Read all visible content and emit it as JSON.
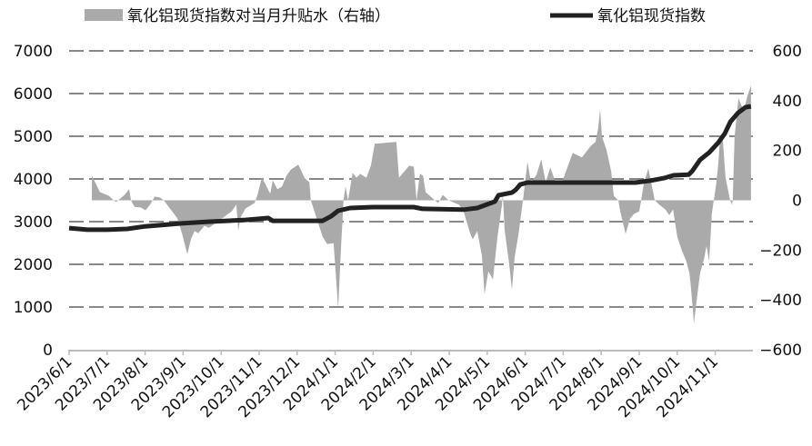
{
  "chart_data": {
    "type": "line",
    "title": "",
    "x_unit": "months since 2023/6/1",
    "x_tick_labels": [
      "2023/6/1",
      "2023/7/1",
      "2023/8/1",
      "2023/9/1",
      "2023/10/1",
      "2023/11/1",
      "2023/12/1",
      "2024/1/1",
      "2024/2/1",
      "2024/3/1",
      "2024/4/1",
      "2024/5/1",
      "2024/6/1",
      "2024/7/1",
      "2024/8/1",
      "2024/9/1",
      "2024/10/1",
      "2024/11/1"
    ],
    "left_axis": {
      "ylim": [
        0,
        7000
      ],
      "ticks": [
        "0",
        "1000",
        "2000",
        "3000",
        "4000",
        "5000",
        "6000",
        "7000"
      ]
    },
    "right_axis": {
      "ylim": [
        -600,
        600
      ],
      "ticks": [
        "-600",
        "-400",
        "-200",
        "0",
        "200",
        "400",
        "600"
      ]
    },
    "grid": true,
    "legend_position": "top",
    "series": [
      {
        "name": "氧化铝现货指数对当月升贴水（右轴）",
        "type": "area",
        "axis": "right",
        "color": "#aaaaaa",
        "points": [
          [
            0.6,
            99
          ],
          [
            0.81,
            33
          ],
          [
            1.05,
            18
          ],
          [
            1.17,
            0
          ],
          [
            1.24,
            -7
          ],
          [
            1.46,
            22
          ],
          [
            1.58,
            44
          ],
          [
            1.63,
            0
          ],
          [
            1.72,
            -26
          ],
          [
            1.89,
            -29
          ],
          [
            2.01,
            -40
          ],
          [
            2.13,
            -18
          ],
          [
            2.25,
            15
          ],
          [
            2.39,
            11
          ],
          [
            2.49,
            0
          ],
          [
            2.73,
            -48
          ],
          [
            2.85,
            -73
          ],
          [
            2.97,
            -132
          ],
          [
            3.11,
            -216
          ],
          [
            3.21,
            -154
          ],
          [
            3.3,
            -124
          ],
          [
            3.4,
            -132
          ],
          [
            3.56,
            -103
          ],
          [
            3.68,
            -110
          ],
          [
            3.92,
            -84
          ],
          [
            4.28,
            -44
          ],
          [
            4.4,
            -18
          ],
          [
            4.45,
            -121
          ],
          [
            4.52,
            -66
          ],
          [
            4.64,
            -33
          ],
          [
            4.88,
            -11
          ],
          [
            4.95,
            18
          ],
          [
            5.07,
            91
          ],
          [
            5.19,
            58
          ],
          [
            5.29,
            26
          ],
          [
            5.36,
            80
          ],
          [
            5.48,
            44
          ],
          [
            5.6,
            55
          ],
          [
            5.72,
            99
          ],
          [
            5.84,
            124
          ],
          [
            6.03,
            143
          ],
          [
            6.2,
            88
          ],
          [
            6.32,
            73
          ],
          [
            6.36,
            0
          ],
          [
            6.67,
            -146
          ],
          [
            6.79,
            -176
          ],
          [
            6.96,
            -172
          ],
          [
            7.08,
            -435
          ],
          [
            7.15,
            -200
          ],
          [
            7.22,
            0
          ],
          [
            7.27,
            55
          ],
          [
            7.34,
            0
          ],
          [
            7.46,
            110
          ],
          [
            7.56,
            91
          ],
          [
            7.66,
            106
          ],
          [
            7.82,
            91
          ],
          [
            7.94,
            139
          ],
          [
            8.04,
            227
          ],
          [
            8.61,
            234
          ],
          [
            8.68,
            91
          ],
          [
            8.95,
            139
          ],
          [
            9.07,
            135
          ],
          [
            9.14,
            0
          ],
          [
            9.23,
            106
          ],
          [
            9.31,
            99
          ],
          [
            9.38,
            33
          ],
          [
            9.62,
            0
          ],
          [
            9.71,
            -11
          ],
          [
            9.83,
            22
          ],
          [
            9.98,
            0
          ],
          [
            10.26,
            -18
          ],
          [
            10.38,
            -44
          ],
          [
            10.55,
            -132
          ],
          [
            10.62,
            -157
          ],
          [
            10.74,
            -124
          ],
          [
            10.86,
            -220
          ],
          [
            10.93,
            -377
          ],
          [
            11.03,
            -285
          ],
          [
            11.15,
            -318
          ],
          [
            11.27,
            -146
          ],
          [
            11.39,
            -18
          ],
          [
            11.41,
            29
          ],
          [
            11.46,
            -121
          ],
          [
            11.58,
            -256
          ],
          [
            11.65,
            -359
          ],
          [
            11.72,
            -230
          ],
          [
            11.82,
            -139
          ],
          [
            11.94,
            0
          ],
          [
            12.06,
            154
          ],
          [
            12.15,
            73
          ],
          [
            12.3,
            102
          ],
          [
            12.42,
            165
          ],
          [
            12.54,
            73
          ],
          [
            12.66,
            132
          ],
          [
            12.82,
            62
          ],
          [
            12.97,
            73
          ],
          [
            13.25,
            190
          ],
          [
            13.49,
            172
          ],
          [
            13.73,
            219
          ],
          [
            13.85,
            234
          ],
          [
            13.92,
            289
          ],
          [
            13.97,
            366
          ],
          [
            14.02,
            256
          ],
          [
            14.14,
            201
          ],
          [
            14.26,
            117
          ],
          [
            14.33,
            18
          ],
          [
            14.45,
            0
          ],
          [
            14.5,
            -44
          ],
          [
            14.64,
            -135
          ],
          [
            14.76,
            -73
          ],
          [
            14.86,
            -55
          ],
          [
            15.0,
            -44
          ],
          [
            15.05,
            0
          ],
          [
            15.12,
            66
          ],
          [
            15.24,
            128
          ],
          [
            15.31,
            73
          ],
          [
            15.41,
            0
          ],
          [
            15.53,
            -18
          ],
          [
            15.69,
            -37
          ],
          [
            15.79,
            -59
          ],
          [
            15.89,
            -37
          ],
          [
            16.0,
            -146
          ],
          [
            16.12,
            -201
          ],
          [
            16.24,
            -245
          ],
          [
            16.32,
            -293
          ],
          [
            16.36,
            -348
          ],
          [
            16.44,
            -494
          ],
          [
            16.51,
            -403
          ],
          [
            16.6,
            -293
          ],
          [
            16.7,
            -238
          ],
          [
            16.77,
            -183
          ],
          [
            16.84,
            -245
          ],
          [
            16.91,
            -55
          ],
          [
            17.03,
            73
          ],
          [
            17.08,
            146
          ],
          [
            17.13,
            256
          ],
          [
            17.2,
            238
          ],
          [
            17.27,
            91
          ],
          [
            17.39,
            0
          ],
          [
            17.44,
            -18
          ],
          [
            17.46,
            0
          ],
          [
            17.51,
            256
          ],
          [
            17.61,
            410
          ],
          [
            17.75,
            358
          ],
          [
            17.85,
            421
          ],
          [
            17.94,
            461
          ]
        ]
      },
      {
        "name": "氧化铝现货指数",
        "type": "line",
        "axis": "left",
        "color": "#222222",
        "points": [
          [
            0,
            2850
          ],
          [
            0.48,
            2810
          ],
          [
            1.0,
            2810
          ],
          [
            1.53,
            2830
          ],
          [
            2.0,
            2890
          ],
          [
            2.97,
            2960
          ],
          [
            3.7,
            3000
          ],
          [
            4.64,
            3040
          ],
          [
            5.24,
            3085
          ],
          [
            5.36,
            3020
          ],
          [
            6.67,
            3020
          ],
          [
            6.9,
            3130
          ],
          [
            7.08,
            3255
          ],
          [
            7.39,
            3320
          ],
          [
            7.99,
            3340
          ],
          [
            9.07,
            3340
          ],
          [
            9.3,
            3300
          ],
          [
            10.38,
            3280
          ],
          [
            10.74,
            3320
          ],
          [
            11.2,
            3470
          ],
          [
            11.3,
            3620
          ],
          [
            11.65,
            3680
          ],
          [
            11.75,
            3745
          ],
          [
            11.87,
            3870
          ],
          [
            12.06,
            3915
          ],
          [
            13.7,
            3915
          ],
          [
            14.9,
            3915
          ],
          [
            15.29,
            3960
          ],
          [
            15.65,
            4020
          ],
          [
            15.9,
            4085
          ],
          [
            16.3,
            4100
          ],
          [
            16.4,
            4190
          ],
          [
            16.6,
            4450
          ],
          [
            16.84,
            4620
          ],
          [
            17.08,
            4850
          ],
          [
            17.25,
            5060
          ],
          [
            17.4,
            5340
          ],
          [
            17.6,
            5550
          ],
          [
            17.8,
            5680
          ],
          [
            17.94,
            5700
          ]
        ]
      }
    ]
  }
}
